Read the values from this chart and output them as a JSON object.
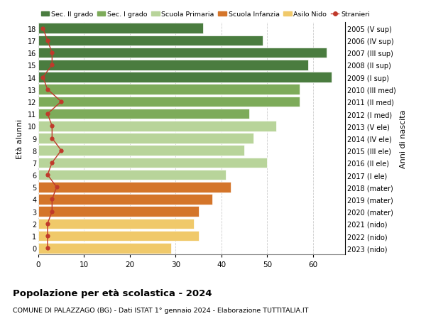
{
  "ages": [
    18,
    17,
    16,
    15,
    14,
    13,
    12,
    11,
    10,
    9,
    8,
    7,
    6,
    5,
    4,
    3,
    2,
    1,
    0
  ],
  "years": [
    "2005 (V sup)",
    "2006 (IV sup)",
    "2007 (III sup)",
    "2008 (II sup)",
    "2009 (I sup)",
    "2010 (III med)",
    "2011 (II med)",
    "2012 (I med)",
    "2013 (V ele)",
    "2014 (IV ele)",
    "2015 (III ele)",
    "2016 (II ele)",
    "2017 (I ele)",
    "2018 (mater)",
    "2019 (mater)",
    "2020 (mater)",
    "2021 (nido)",
    "2022 (nido)",
    "2023 (nido)"
  ],
  "bar_values": [
    36,
    49,
    63,
    59,
    64,
    57,
    57,
    46,
    52,
    47,
    45,
    50,
    41,
    42,
    38,
    35,
    34,
    35,
    29
  ],
  "bar_colors": [
    "#4a7c3f",
    "#4a7c3f",
    "#4a7c3f",
    "#4a7c3f",
    "#4a7c3f",
    "#7dab5a",
    "#7dab5a",
    "#7dab5a",
    "#b8d49a",
    "#b8d49a",
    "#b8d49a",
    "#b8d49a",
    "#b8d49a",
    "#d4752a",
    "#d4752a",
    "#d4752a",
    "#f0c96a",
    "#f0c96a",
    "#f0c96a"
  ],
  "stranieri_values": [
    1,
    2,
    3,
    3,
    1,
    2,
    5,
    2,
    3,
    3,
    5,
    3,
    2,
    4,
    3,
    3,
    2,
    2,
    2
  ],
  "stranieri_color": "#c0392b",
  "legend_labels": [
    "Sec. II grado",
    "Sec. I grado",
    "Scuola Primaria",
    "Scuola Infanzia",
    "Asilo Nido",
    "Stranieri"
  ],
  "legend_colors": [
    "#4a7c3f",
    "#7dab5a",
    "#b8d49a",
    "#d4752a",
    "#f0c96a",
    "#c0392b"
  ],
  "title_bold": "Popolazione per età scolastica - 2024",
  "subtitle": "COMUNE DI PALAZZAGO (BG) - Dati ISTAT 1° gennaio 2024 - Elaborazione TUTTITALIA.IT",
  "ylabel_left": "Età alunni",
  "ylabel_right": "Anni di nascita",
  "xlim": [
    0,
    67
  ],
  "xticks": [
    0,
    10,
    20,
    30,
    40,
    50,
    60
  ],
  "bg_color": "#ffffff",
  "grid_color": "#cccccc"
}
